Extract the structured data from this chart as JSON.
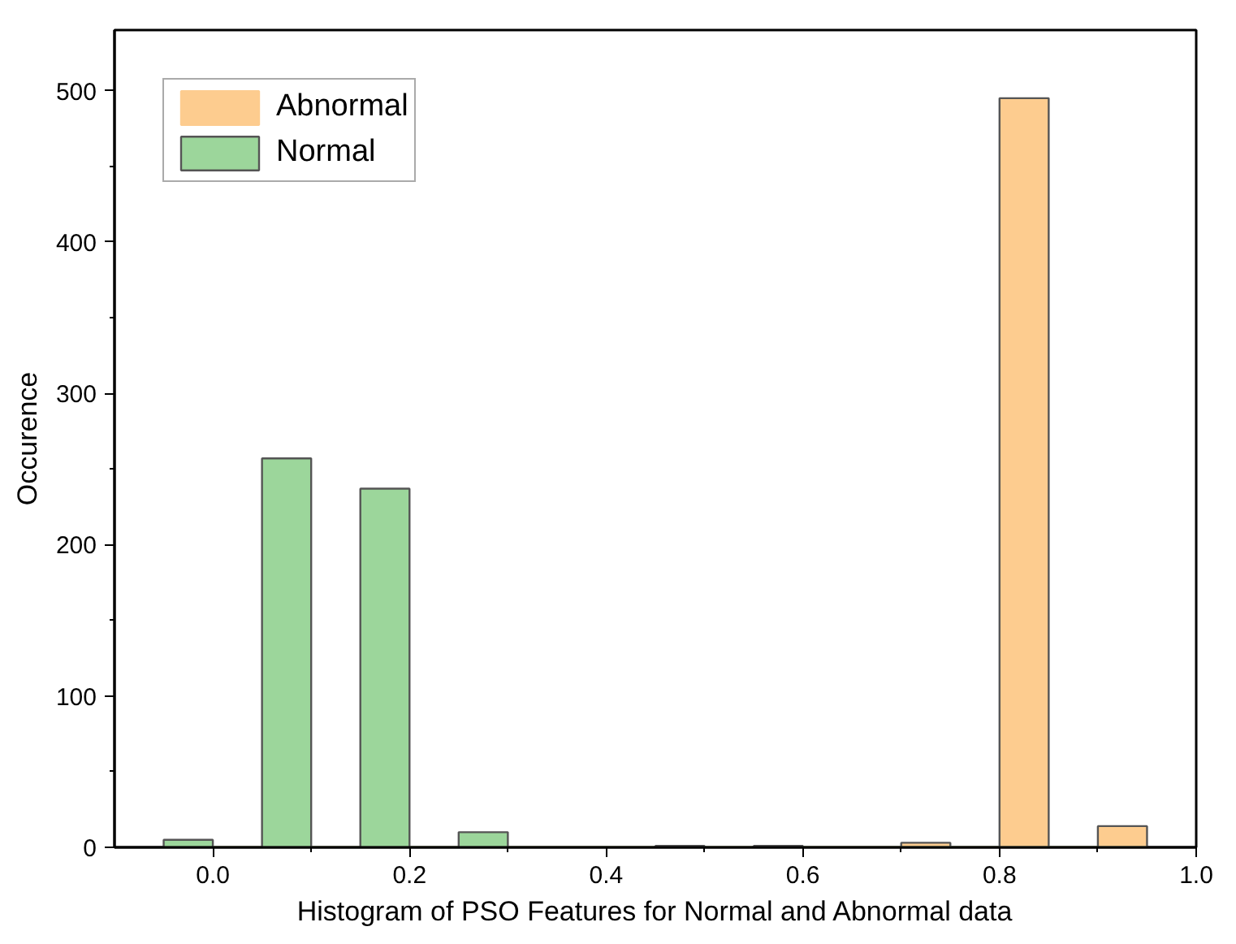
{
  "chart_data": {
    "type": "histogram",
    "xlabel": "Histogram of PSO Features for Normal and Abnormal data",
    "ylabel": "Occurence",
    "bins": [
      -0.05,
      0.0,
      0.05,
      0.1,
      0.15,
      0.2,
      0.25,
      0.3,
      0.35,
      0.4,
      0.45,
      0.5,
      0.55,
      0.6,
      0.65,
      0.7,
      0.75,
      0.8,
      0.85,
      0.9,
      0.95
    ],
    "series": [
      {
        "name": "Abnormal",
        "color": "#fdcc8f",
        "values": [
          0,
          0,
          0,
          0,
          0,
          0,
          0,
          0,
          0,
          0,
          0,
          0,
          0,
          0,
          0,
          3,
          0,
          495,
          0,
          14
        ]
      },
      {
        "name": "Normal",
        "color": "#9cd69b",
        "values": [
          5,
          0,
          257,
          0,
          237,
          0,
          10,
          0,
          0,
          0,
          1,
          0,
          1,
          0,
          0,
          0,
          0,
          0,
          0,
          0
        ]
      }
    ],
    "xlim": [
      -0.1,
      1.0
    ],
    "xticks": [
      {
        "value": 0,
        "label": "0.0"
      },
      0.2,
      0.4,
      0.6,
      0.8,
      {
        "value": 1,
        "label": "1.0"
      }
    ],
    "ylim": [
      0,
      540
    ],
    "yticks": [
      0,
      100,
      200,
      300,
      400,
      500
    ],
    "grid": false,
    "legend": "top left"
  }
}
